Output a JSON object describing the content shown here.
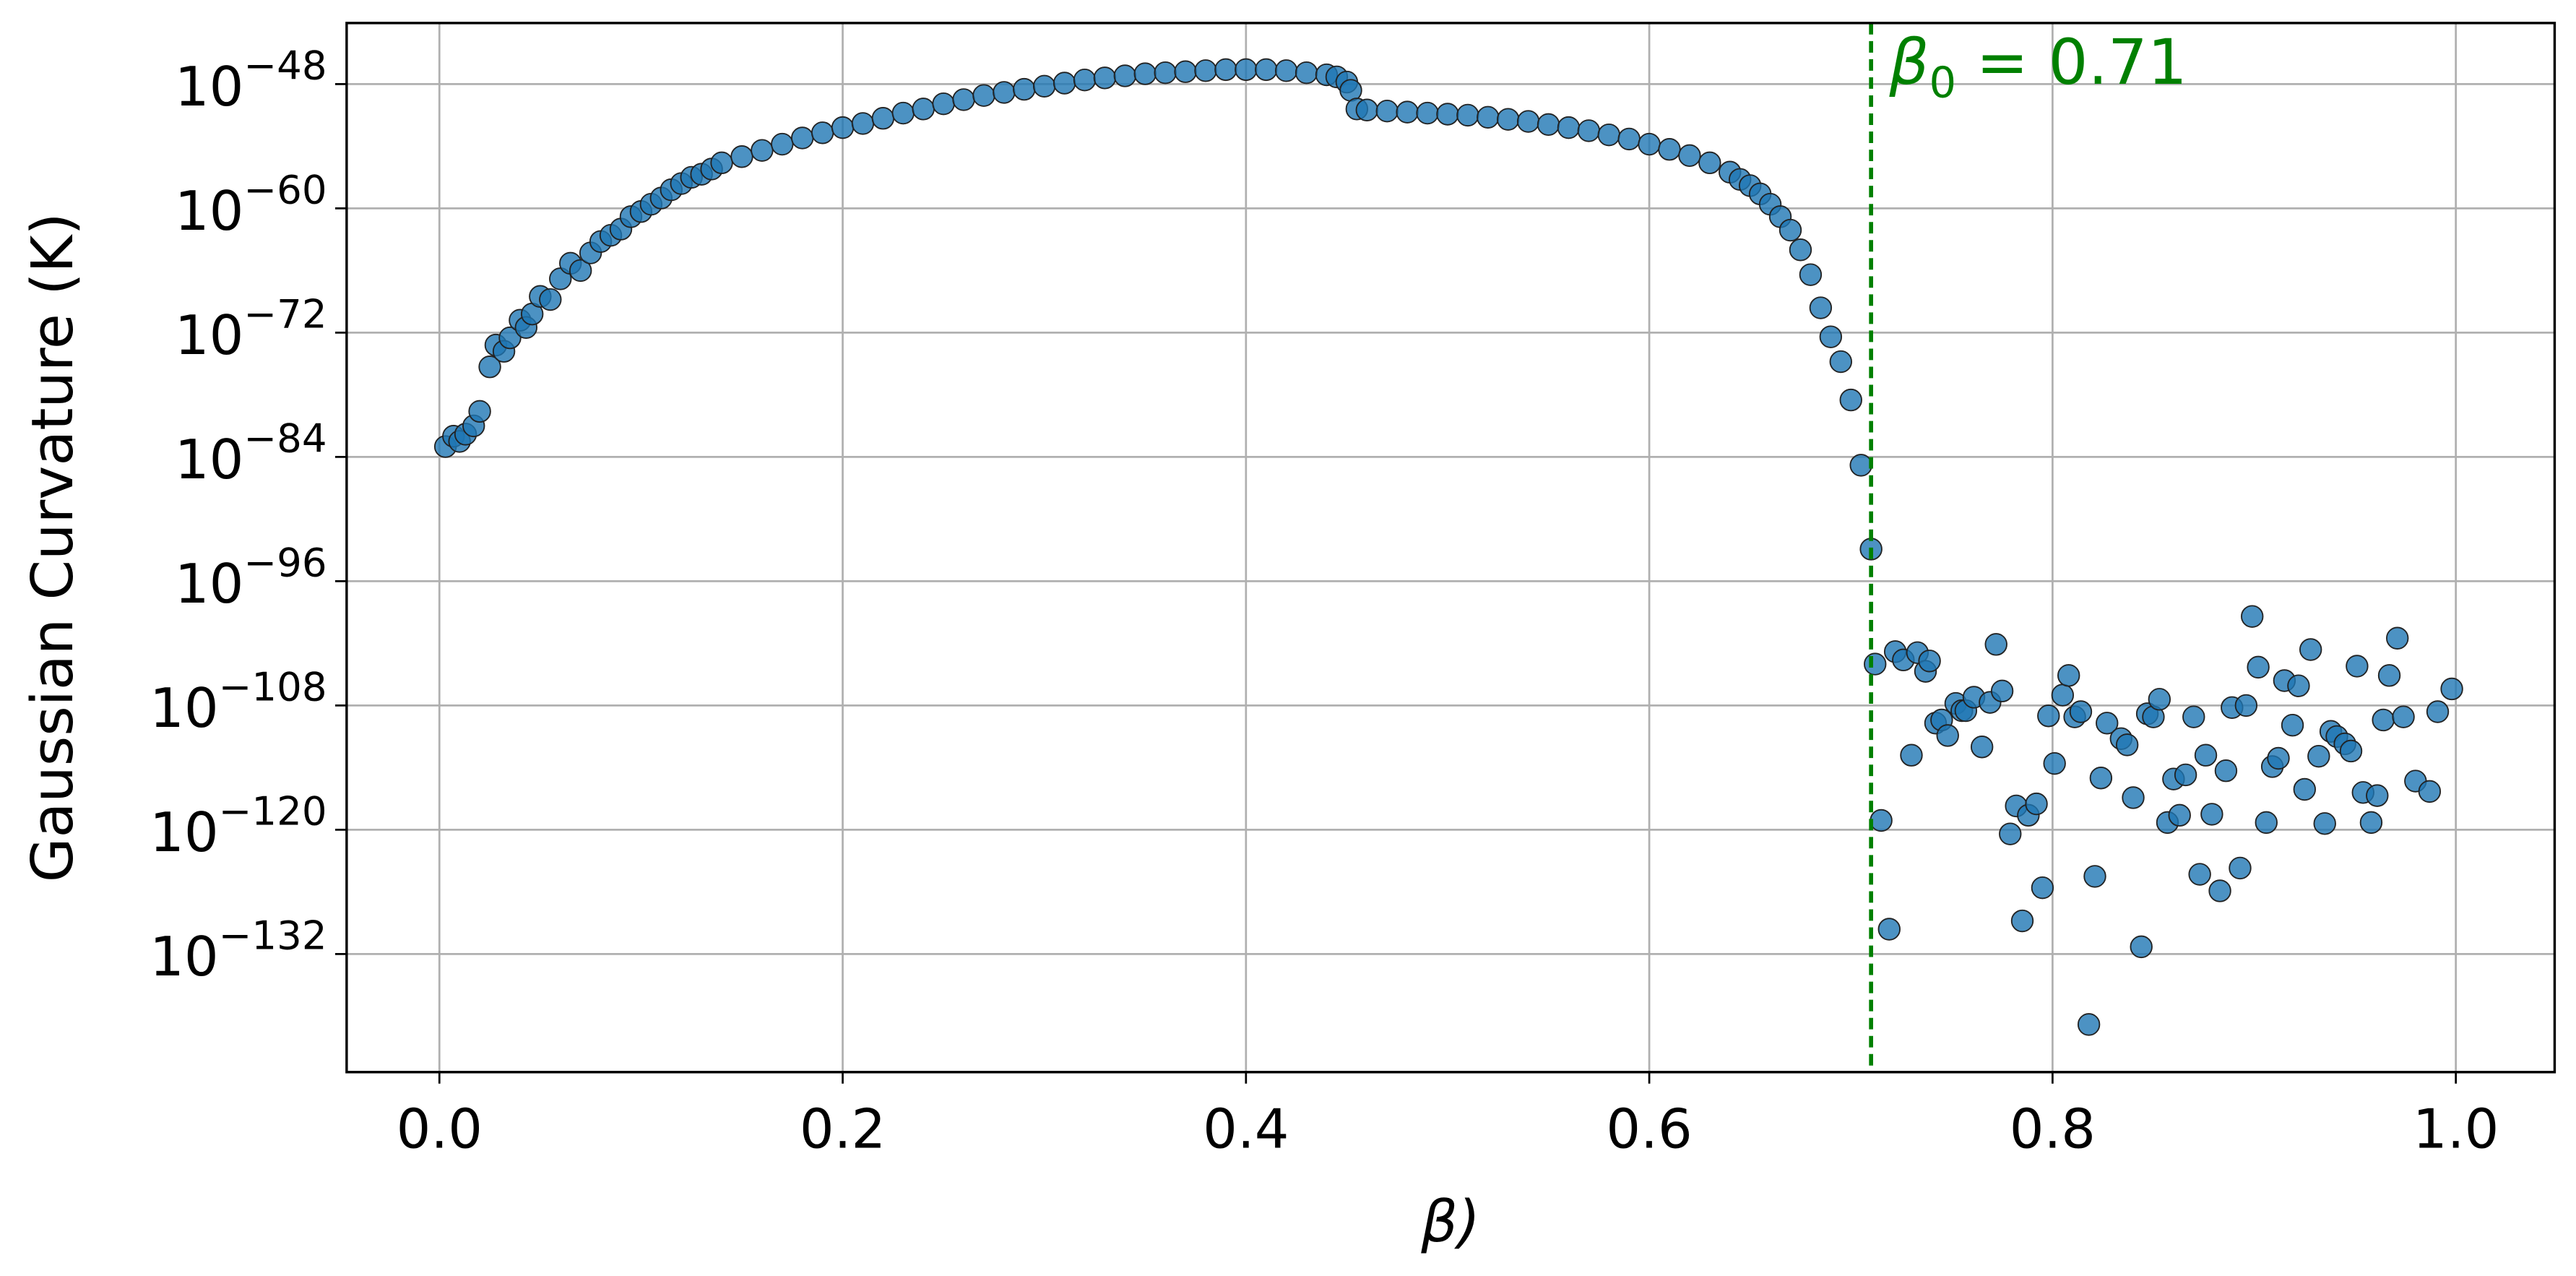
{
  "chart_data": {
    "type": "scatter",
    "title": "",
    "xlabel": "β)",
    "ylabel": "Gaussian Curvature (K)",
    "yscale": "log",
    "xlim": [
      -0.046,
      1.049
    ],
    "ylim_log10": [
      -143.4,
      -42.1
    ],
    "grid": true,
    "xticks": [
      "0.0",
      "0.2",
      "0.4",
      "0.6",
      "0.8",
      "1.0"
    ],
    "xtick_values": [
      0,
      0.2,
      0.4,
      0.6,
      0.8,
      1.0
    ],
    "yticks": [
      {
        "base": "10",
        "exp": "−48",
        "log10": -48
      },
      {
        "base": "10",
        "exp": "−60",
        "log10": -60
      },
      {
        "base": "10",
        "exp": "−72",
        "log10": -72
      },
      {
        "base": "10",
        "exp": "−84",
        "log10": -84
      },
      {
        "base": "10",
        "exp": "−96",
        "log10": -96
      },
      {
        "base": "10",
        "exp": "−108",
        "log10": -108
      },
      {
        "base": "10",
        "exp": "−120",
        "log10": -120
      },
      {
        "base": "10",
        "exp": "−132",
        "log10": -132
      }
    ],
    "marker_color": "#1f77b4",
    "vline": {
      "x": 0.71,
      "color": "#008000",
      "style": "dashed",
      "label_main": "β",
      "label_sub": "0",
      "label_rest": " = 0.71"
    },
    "series": [
      {
        "x_log10K_pairs": [
          [
            0.003,
            -83.0
          ],
          [
            0.007,
            -82.0
          ],
          [
            0.01,
            -82.5
          ],
          [
            0.013,
            -81.8
          ],
          [
            0.017,
            -81.0
          ],
          [
            0.02,
            -79.6
          ],
          [
            0.025,
            -75.3
          ],
          [
            0.028,
            -73.2
          ],
          [
            0.032,
            -73.8
          ],
          [
            0.035,
            -72.5
          ],
          [
            0.04,
            -70.8
          ],
          [
            0.043,
            -71.5
          ],
          [
            0.046,
            -70.2
          ],
          [
            0.05,
            -68.5
          ],
          [
            0.055,
            -68.8
          ],
          [
            0.06,
            -66.8
          ],
          [
            0.065,
            -65.3
          ],
          [
            0.07,
            -66.0
          ],
          [
            0.075,
            -64.3
          ],
          [
            0.08,
            -63.2
          ],
          [
            0.085,
            -62.6
          ],
          [
            0.09,
            -62.0
          ],
          [
            0.095,
            -60.8
          ],
          [
            0.1,
            -60.3
          ],
          [
            0.105,
            -59.6
          ],
          [
            0.11,
            -59.0
          ],
          [
            0.115,
            -58.2
          ],
          [
            0.12,
            -57.6
          ],
          [
            0.125,
            -57.0
          ],
          [
            0.13,
            -56.7
          ],
          [
            0.135,
            -56.2
          ],
          [
            0.14,
            -55.6
          ],
          [
            0.15,
            -55.0
          ],
          [
            0.16,
            -54.4
          ],
          [
            0.17,
            -53.8
          ],
          [
            0.18,
            -53.2
          ],
          [
            0.19,
            -52.7
          ],
          [
            0.2,
            -52.2
          ],
          [
            0.21,
            -51.8
          ],
          [
            0.22,
            -51.3
          ],
          [
            0.23,
            -50.8
          ],
          [
            0.24,
            -50.4
          ],
          [
            0.25,
            -49.9
          ],
          [
            0.26,
            -49.5
          ],
          [
            0.27,
            -49.1
          ],
          [
            0.28,
            -48.8
          ],
          [
            0.29,
            -48.5
          ],
          [
            0.3,
            -48.2
          ],
          [
            0.31,
            -47.9
          ],
          [
            0.32,
            -47.6
          ],
          [
            0.33,
            -47.4
          ],
          [
            0.34,
            -47.2
          ],
          [
            0.35,
            -47.0
          ],
          [
            0.36,
            -46.9
          ],
          [
            0.37,
            -46.8
          ],
          [
            0.38,
            -46.7
          ],
          [
            0.39,
            -46.6
          ],
          [
            0.4,
            -46.6
          ],
          [
            0.41,
            -46.6
          ],
          [
            0.42,
            -46.7
          ],
          [
            0.43,
            -46.9
          ],
          [
            0.44,
            -47.1
          ],
          [
            0.445,
            -47.3
          ],
          [
            0.45,
            -47.8
          ],
          [
            0.452,
            -48.6
          ],
          [
            0.455,
            -50.4
          ],
          [
            0.46,
            -50.5
          ],
          [
            0.47,
            -50.6
          ],
          [
            0.48,
            -50.7
          ],
          [
            0.49,
            -50.8
          ],
          [
            0.5,
            -50.9
          ],
          [
            0.51,
            -51.0
          ],
          [
            0.52,
            -51.2
          ],
          [
            0.53,
            -51.4
          ],
          [
            0.54,
            -51.6
          ],
          [
            0.55,
            -51.9
          ],
          [
            0.56,
            -52.2
          ],
          [
            0.57,
            -52.5
          ],
          [
            0.58,
            -52.9
          ],
          [
            0.59,
            -53.3
          ],
          [
            0.6,
            -53.8
          ],
          [
            0.61,
            -54.3
          ],
          [
            0.62,
            -54.9
          ],
          [
            0.63,
            -55.6
          ],
          [
            0.64,
            -56.5
          ],
          [
            0.645,
            -57.2
          ],
          [
            0.65,
            -57.8
          ],
          [
            0.655,
            -58.6
          ],
          [
            0.66,
            -59.6
          ],
          [
            0.665,
            -60.8
          ],
          [
            0.67,
            -62.1
          ],
          [
            0.675,
            -64.0
          ],
          [
            0.68,
            -66.4
          ],
          [
            0.685,
            -69.6
          ],
          [
            0.69,
            -72.4
          ],
          [
            0.695,
            -74.8
          ],
          [
            0.7,
            -78.5
          ],
          [
            0.705,
            -84.8
          ],
          [
            0.71,
            -92.9
          ],
          [
            0.712,
            -104.0
          ],
          [
            0.715,
            -119.1
          ],
          [
            0.719,
            -129.6
          ],
          [
            0.722,
            -102.8
          ],
          [
            0.726,
            -103.6
          ],
          [
            0.73,
            -112.8
          ],
          [
            0.733,
            -102.9
          ],
          [
            0.737,
            -104.7
          ],
          [
            0.739,
            -103.7
          ],
          [
            0.742,
            -109.7
          ],
          [
            0.745,
            -109.4
          ],
          [
            0.748,
            -110.9
          ],
          [
            0.752,
            -107.8
          ],
          [
            0.755,
            -108.5
          ],
          [
            0.757,
            -108.5
          ],
          [
            0.761,
            -107.2
          ],
          [
            0.765,
            -112.0
          ],
          [
            0.769,
            -107.7
          ],
          [
            0.772,
            -102.1
          ],
          [
            0.775,
            -106.6
          ],
          [
            0.779,
            -120.4
          ],
          [
            0.782,
            -117.7
          ],
          [
            0.785,
            -128.8
          ],
          [
            0.788,
            -118.6
          ],
          [
            0.792,
            -117.5
          ],
          [
            0.795,
            -125.6
          ],
          [
            0.798,
            -109.0
          ],
          [
            0.801,
            -113.6
          ],
          [
            0.805,
            -107.0
          ],
          [
            0.808,
            -105.1
          ],
          [
            0.811,
            -109.1
          ],
          [
            0.814,
            -108.6
          ],
          [
            0.818,
            -138.8
          ],
          [
            0.821,
            -124.5
          ],
          [
            0.824,
            -115.0
          ],
          [
            0.827,
            -109.7
          ],
          [
            0.834,
            -111.2
          ],
          [
            0.837,
            -111.8
          ],
          [
            0.84,
            -116.9
          ],
          [
            0.844,
            -131.3
          ],
          [
            0.847,
            -108.8
          ],
          [
            0.85,
            -109.1
          ],
          [
            0.853,
            -107.4
          ],
          [
            0.857,
            -119.3
          ],
          [
            0.86,
            -115.1
          ],
          [
            0.863,
            -118.6
          ],
          [
            0.866,
            -114.7
          ],
          [
            0.87,
            -109.1
          ],
          [
            0.873,
            -124.3
          ],
          [
            0.876,
            -112.8
          ],
          [
            0.879,
            -118.5
          ],
          [
            0.883,
            -125.9
          ],
          [
            0.886,
            -114.3
          ],
          [
            0.889,
            -108.2
          ],
          [
            0.893,
            -123.7
          ],
          [
            0.896,
            -108.0
          ],
          [
            0.899,
            -99.4
          ],
          [
            0.902,
            -104.3
          ],
          [
            0.906,
            -119.3
          ],
          [
            0.909,
            -113.9
          ],
          [
            0.912,
            -113.1
          ],
          [
            0.915,
            -105.6
          ],
          [
            0.919,
            -109.9
          ],
          [
            0.922,
            -106.1
          ],
          [
            0.925,
            -116.1
          ],
          [
            0.928,
            -102.6
          ],
          [
            0.932,
            -112.9
          ],
          [
            0.935,
            -119.4
          ],
          [
            0.938,
            -110.5
          ],
          [
            0.941,
            -111.0
          ],
          [
            0.945,
            -111.7
          ],
          [
            0.948,
            -112.4
          ],
          [
            0.951,
            -104.2
          ],
          [
            0.954,
            -116.4
          ],
          [
            0.958,
            -119.3
          ],
          [
            0.961,
            -116.7
          ],
          [
            0.964,
            -109.4
          ],
          [
            0.967,
            -105.1
          ],
          [
            0.971,
            -101.5
          ],
          [
            0.974,
            -109.1
          ],
          [
            0.98,
            -115.3
          ],
          [
            0.987,
            -116.3
          ],
          [
            0.991,
            -108.6
          ],
          [
            0.998,
            -106.4
          ]
        ]
      }
    ]
  }
}
